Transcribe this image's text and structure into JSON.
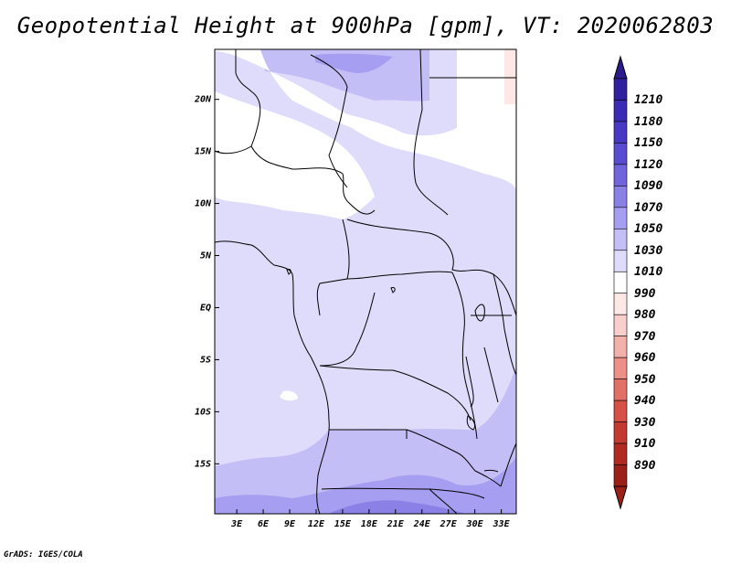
{
  "title": "Geopotential Height at 900hPa [gpm], VT: 2020062803",
  "credit": "GrADS: IGES/COLA",
  "map": {
    "lat_ticks": [
      "20N",
      "15N",
      "10N",
      "5N",
      "EQ",
      "5S",
      "10S",
      "15S"
    ],
    "lon_ticks": [
      "3E",
      "6E",
      "9E",
      "12E",
      "15E",
      "18E",
      "21E",
      "24E",
      "27E",
      "30E",
      "33E"
    ],
    "lat_values": [
      20,
      15,
      10,
      5,
      0,
      -5,
      -10,
      -15
    ],
    "lon_values": [
      3,
      6,
      9,
      12,
      15,
      18,
      21,
      24,
      27,
      30,
      33
    ],
    "extent": {
      "lon_min": 0.5,
      "lon_max": 34.7,
      "lat_min": -19.8,
      "lat_max": 24.8
    }
  },
  "colorbar": {
    "labels": [
      "1210",
      "1180",
      "1150",
      "1120",
      "1090",
      "1070",
      "1050",
      "1030",
      "1010",
      "990",
      "980",
      "970",
      "960",
      "950",
      "940",
      "930",
      "910",
      "890"
    ],
    "colors": {
      "top_arrow": "#2a1a8c",
      "c1210": "#3020a0",
      "c1180": "#3a2ab4",
      "c1150": "#4838c4",
      "c1120": "#5a4cd0",
      "c1090": "#7264dc",
      "c1070": "#8a80e6",
      "c1050": "#a69ef0",
      "c1030": "#c4bef6",
      "c1010": "#dedcfa",
      "c990": "#ffffff",
      "c980": "#fde8e6",
      "c970": "#f8cfcb",
      "c960": "#f2b0aa",
      "c950": "#ec9088",
      "c940": "#e27066",
      "c930": "#d65046",
      "c910": "#c43a30",
      "c890": "#b02a22",
      "bottom_arrow": "#9a2018"
    }
  }
}
